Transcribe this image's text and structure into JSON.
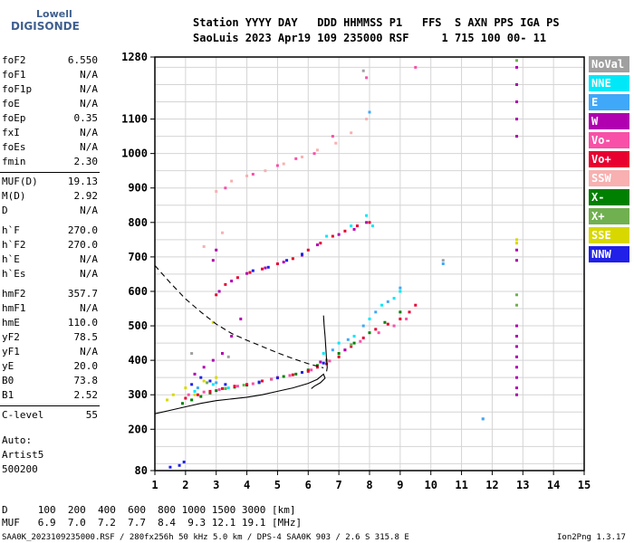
{
  "logo": {
    "line1": "Lowell",
    "line2": "DIGISONDE"
  },
  "header": {
    "line1": "Station YYYY DAY   DDD HHMMSS P1   FFS  S AXN PPS IGA PS",
    "line2": "SaoLuis 2023 Apr19 109 235000 RSF     1 715 100 00- 11"
  },
  "params": [
    {
      "label": "foF2",
      "value": "6.550"
    },
    {
      "label": "foF1",
      "value": "N/A"
    },
    {
      "label": "foF1p",
      "value": "N/A"
    },
    {
      "label": "foE",
      "value": "N/A"
    },
    {
      "label": "foEp",
      "value": "0.35"
    },
    {
      "label": "fxI",
      "value": "N/A"
    },
    {
      "label": "foEs",
      "value": "N/A"
    },
    {
      "label": "fmin",
      "value": "2.30"
    },
    {
      "label": "MUF(D)",
      "value": "19.13"
    },
    {
      "label": "M(D)",
      "value": "2.92"
    },
    {
      "label": "D",
      "value": "N/A"
    },
    {
      "label": "h`F",
      "value": "270.0"
    },
    {
      "label": "h`F2",
      "value": "270.0"
    },
    {
      "label": "h`E",
      "value": "N/A"
    },
    {
      "label": "h`Es",
      "value": "N/A"
    },
    {
      "label": "hmF2",
      "value": "357.7"
    },
    {
      "label": "hmF1",
      "value": "N/A"
    },
    {
      "label": "hmE",
      "value": "110.0"
    },
    {
      "label": "yF2",
      "value": "78.5"
    },
    {
      "label": "yF1",
      "value": "N/A"
    },
    {
      "label": "yE",
      "value": "20.0"
    },
    {
      "label": "B0",
      "value": "73.8"
    },
    {
      "label": "B1",
      "value": "2.52"
    },
    {
      "label": "C-level",
      "value": "55"
    }
  ],
  "auto": {
    "line1": "Auto:",
    "line2": "Artist5",
    "line3": "500200"
  },
  "footer": {
    "d_line": "D     100  200  400  600  800 1000 1500 3000 [km]",
    "muf_line": "MUF   6.9  7.0  7.2  7.7  8.4  9.3 12.1 19.1 [MHz]",
    "file_line": "SAA0K_2023109235000.RSF / 280fx256h 50 kHz 5.0 km / DPS-4 SAA0K 903 / 2.6 S 315.8 E",
    "version": "Ion2Png 1.3.17"
  },
  "legend": [
    {
      "label": "NoVal",
      "color": "#a0a0a0"
    },
    {
      "label": "NNE",
      "color": "#00e8f8"
    },
    {
      "label": "E",
      "color": "#40a8f8"
    },
    {
      "label": "W",
      "color": "#b000b0"
    },
    {
      "label": "Vo-",
      "color": "#f850a8"
    },
    {
      "label": "Vo+",
      "color": "#e80030"
    },
    {
      "label": "SSW",
      "color": "#f8b0b0"
    },
    {
      "label": "X-",
      "color": "#008000"
    },
    {
      "label": "X+",
      "color": "#70b050"
    },
    {
      "label": "SSE",
      "color": "#d8d800"
    },
    {
      "label": "NNW",
      "color": "#2020e8"
    }
  ],
  "chart_data": {
    "type": "scatter",
    "xlim": [
      1,
      15
    ],
    "ylim": [
      80,
      1280
    ],
    "x_ticks": [
      1,
      2,
      3,
      4,
      5,
      6,
      7,
      8,
      9,
      10,
      11,
      12,
      13,
      14,
      15
    ],
    "y_ticks": [
      80,
      200,
      300,
      400,
      500,
      600,
      700,
      800,
      900,
      1000,
      1100,
      1280
    ],
    "grid": true,
    "series": [
      {
        "name": "F2 trace (X-)",
        "color": "#008000",
        "points": [
          [
            1.9,
            275
          ],
          [
            2.2,
            285
          ],
          [
            2.5,
            295
          ],
          [
            2.8,
            305
          ],
          [
            3.0,
            312
          ],
          [
            3.3,
            318
          ],
          [
            3.6,
            322
          ],
          [
            4.0,
            328
          ],
          [
            4.4,
            335
          ],
          [
            4.8,
            345
          ],
          [
            5.2,
            353
          ],
          [
            5.6,
            360
          ],
          [
            6.0,
            372
          ],
          [
            6.3,
            385
          ],
          [
            6.6,
            400
          ],
          [
            7.0,
            420
          ],
          [
            7.5,
            450
          ],
          [
            8.0,
            480
          ],
          [
            8.5,
            510
          ],
          [
            9.0,
            540
          ]
        ]
      },
      {
        "name": "F2 trace (Vo+)",
        "color": "#e80030",
        "points": [
          [
            2.0,
            290
          ],
          [
            2.4,
            300
          ],
          [
            2.8,
            310
          ],
          [
            3.2,
            318
          ],
          [
            3.6,
            325
          ],
          [
            4.0,
            330
          ],
          [
            4.5,
            340
          ],
          [
            5.0,
            350
          ],
          [
            5.5,
            358
          ],
          [
            6.0,
            368
          ],
          [
            6.3,
            380
          ],
          [
            6.6,
            390
          ],
          [
            7.0,
            410
          ],
          [
            7.4,
            440
          ],
          [
            7.8,
            465
          ],
          [
            8.2,
            490
          ],
          [
            8.6,
            505
          ],
          [
            9.0,
            520
          ],
          [
            9.3,
            540
          ],
          [
            9.5,
            560
          ]
        ]
      },
      {
        "name": "F2 trace (Vo-)",
        "color": "#f850a8",
        "points": [
          [
            2.1,
            300
          ],
          [
            2.6,
            308
          ],
          [
            3.1,
            315
          ],
          [
            3.7,
            325
          ],
          [
            4.2,
            332
          ],
          [
            4.8,
            345
          ],
          [
            5.4,
            356
          ],
          [
            6.1,
            372
          ],
          [
            6.7,
            398
          ],
          [
            7.2,
            430
          ],
          [
            7.7,
            455
          ],
          [
            8.3,
            480
          ],
          [
            8.8,
            500
          ],
          [
            9.2,
            520
          ]
        ]
      },
      {
        "name": "F2 trace (NNE)",
        "color": "#00e8f8",
        "points": [
          [
            2.3,
            310
          ],
          [
            2.9,
            330
          ],
          [
            3.4,
            320
          ],
          [
            6.5,
            420
          ],
          [
            7.0,
            450
          ],
          [
            7.5,
            470
          ],
          [
            8.0,
            520
          ],
          [
            8.4,
            560
          ],
          [
            8.8,
            580
          ],
          [
            9.0,
            600
          ]
        ]
      },
      {
        "name": "F2 trace (E)",
        "color": "#40a8f8",
        "points": [
          [
            2.4,
            320
          ],
          [
            3.0,
            335
          ],
          [
            6.8,
            430
          ],
          [
            7.3,
            460
          ],
          [
            7.8,
            500
          ],
          [
            8.2,
            540
          ],
          [
            8.6,
            570
          ],
          [
            9.0,
            610
          ]
        ]
      },
      {
        "name": "F2 trace (NNW)",
        "color": "#2020e8",
        "points": [
          [
            1.5,
            90
          ],
          [
            1.8,
            95
          ],
          [
            1.95,
            105
          ],
          [
            2.2,
            330
          ],
          [
            2.5,
            350
          ],
          [
            2.8,
            340
          ],
          [
            3.3,
            330
          ],
          [
            4.4,
            337
          ],
          [
            5.0,
            349
          ],
          [
            5.8,
            365
          ],
          [
            6.5,
            392
          ]
        ]
      },
      {
        "name": "F2 trace (W)",
        "color": "#b000b0",
        "points": [
          [
            2.3,
            360
          ],
          [
            2.6,
            380
          ],
          [
            2.9,
            400
          ],
          [
            3.2,
            420
          ],
          [
            3.5,
            470
          ],
          [
            3.8,
            520
          ],
          [
            6.4,
            395
          ],
          [
            7.2,
            430
          ],
          [
            12.8,
            300
          ],
          [
            12.8,
            320
          ],
          [
            12.8,
            350
          ],
          [
            12.8,
            380
          ],
          [
            12.8,
            410
          ],
          [
            12.8,
            440
          ],
          [
            12.8,
            470
          ],
          [
            12.8,
            500
          ],
          [
            12.8,
            690
          ],
          [
            12.8,
            720
          ],
          [
            12.8,
            1050
          ],
          [
            12.8,
            1100
          ],
          [
            12.8,
            1150
          ],
          [
            12.8,
            1200
          ],
          [
            12.8,
            1250
          ]
        ]
      },
      {
        "name": "F2 trace (SSE)",
        "color": "#d8d800",
        "points": [
          [
            1.4,
            285
          ],
          [
            1.6,
            300
          ],
          [
            2.0,
            320
          ],
          [
            2.3,
            300
          ],
          [
            2.6,
            340
          ],
          [
            3.0,
            350
          ],
          [
            2.9,
            510
          ],
          [
            12.8,
            750
          ],
          [
            12.8,
            740
          ]
        ]
      },
      {
        "name": "F2 trace (X+)",
        "color": "#70b050",
        "points": [
          [
            2.7,
            335
          ],
          [
            3.3,
            318
          ],
          [
            3.9,
            328
          ],
          [
            6.6,
            400
          ],
          [
            7.4,
            445
          ],
          [
            12.8,
            590
          ],
          [
            12.8,
            560
          ],
          [
            12.8,
            1270
          ]
        ]
      },
      {
        "name": "2F2 trace (Vo+)",
        "color": "#e80030",
        "points": [
          [
            3.0,
            590
          ],
          [
            3.3,
            620
          ],
          [
            3.7,
            640
          ],
          [
            4.1,
            655
          ],
          [
            4.5,
            665
          ],
          [
            5.0,
            680
          ],
          [
            5.5,
            695
          ],
          [
            6.0,
            720
          ],
          [
            6.4,
            740
          ],
          [
            6.8,
            760
          ],
          [
            7.2,
            775
          ],
          [
            7.6,
            790
          ],
          [
            8.0,
            800
          ]
        ]
      },
      {
        "name": "2F2 trace (W)",
        "color": "#b000b0",
        "points": [
          [
            3.1,
            600
          ],
          [
            3.5,
            630
          ],
          [
            4.0,
            652
          ],
          [
            4.6,
            668
          ],
          [
            5.2,
            685
          ],
          [
            5.8,
            705
          ],
          [
            6.3,
            735
          ],
          [
            7.0,
            765
          ],
          [
            7.5,
            780
          ],
          [
            7.9,
            800
          ],
          [
            2.9,
            690
          ],
          [
            3.0,
            720
          ]
        ]
      },
      {
        "name": "2F2 trace (NNW)",
        "color": "#2020e8",
        "points": [
          [
            4.2,
            660
          ],
          [
            4.7,
            670
          ],
          [
            5.3,
            690
          ],
          [
            5.8,
            708
          ]
        ]
      },
      {
        "name": "2F2 trace (NNE)",
        "color": "#00e8f8",
        "points": [
          [
            6.6,
            760
          ],
          [
            7.4,
            790
          ],
          [
            7.9,
            820
          ],
          [
            8.1,
            790
          ]
        ]
      },
      {
        "name": "3F2 trace (SSW)",
        "color": "#f8b0b0",
        "points": [
          [
            3.0,
            890
          ],
          [
            3.5,
            920
          ],
          [
            4.0,
            935
          ],
          [
            4.6,
            950
          ],
          [
            5.2,
            970
          ],
          [
            5.8,
            990
          ],
          [
            6.3,
            1010
          ],
          [
            6.9,
            1030
          ],
          [
            7.4,
            1060
          ],
          [
            7.9,
            1100
          ],
          [
            3.2,
            770
          ],
          [
            2.6,
            730
          ]
        ]
      },
      {
        "name": "3F2 trace (Vo-)",
        "color": "#f850a8",
        "points": [
          [
            3.3,
            900
          ],
          [
            4.2,
            940
          ],
          [
            5.0,
            965
          ],
          [
            5.6,
            985
          ],
          [
            6.2,
            1000
          ],
          [
            6.8,
            1050
          ],
          [
            9.5,
            1250
          ],
          [
            7.9,
            1220
          ]
        ]
      },
      {
        "name": "misc (NoVal)",
        "color": "#a0a0a0",
        "points": [
          [
            10.4,
            690
          ],
          [
            11.7,
            230
          ],
          [
            7.8,
            1240
          ],
          [
            2.2,
            420
          ],
          [
            3.4,
            410
          ]
        ]
      },
      {
        "name": "misc (E)",
        "color": "#40a8f8",
        "points": [
          [
            10.4,
            680
          ],
          [
            11.7,
            230
          ],
          [
            8.0,
            1120
          ]
        ]
      }
    ],
    "curves": [
      {
        "name": "profile-solid",
        "style": "solid",
        "points": [
          [
            1,
            245
          ],
          [
            1.5,
            255
          ],
          [
            2,
            265
          ],
          [
            2.5,
            275
          ],
          [
            3,
            283
          ],
          [
            3.5,
            288
          ],
          [
            4,
            293
          ],
          [
            4.5,
            300
          ],
          [
            5,
            310
          ],
          [
            5.5,
            320
          ],
          [
            6,
            333
          ],
          [
            6.3,
            345
          ],
          [
            6.5,
            360
          ],
          [
            6.55,
            348
          ],
          [
            6.4,
            335
          ],
          [
            6.2,
            325
          ],
          [
            6.1,
            318
          ]
        ]
      },
      {
        "name": "profile-solid-2",
        "style": "solid",
        "points": [
          [
            6.6,
            368
          ],
          [
            6.62,
            380
          ],
          [
            6.6,
            400
          ],
          [
            6.58,
            430
          ],
          [
            6.55,
            470
          ],
          [
            6.52,
            500
          ],
          [
            6.5,
            530
          ]
        ]
      },
      {
        "name": "profile-dashed",
        "style": "dashed",
        "points": [
          [
            1,
            675
          ],
          [
            1.5,
            625
          ],
          [
            2,
            578
          ],
          [
            2.5,
            540
          ],
          [
            3,
            505
          ],
          [
            3.5,
            478
          ],
          [
            4,
            458
          ],
          [
            4.5,
            440
          ],
          [
            5,
            422
          ],
          [
            5.5,
            405
          ],
          [
            6,
            390
          ],
          [
            6.5,
            378
          ]
        ]
      }
    ]
  }
}
